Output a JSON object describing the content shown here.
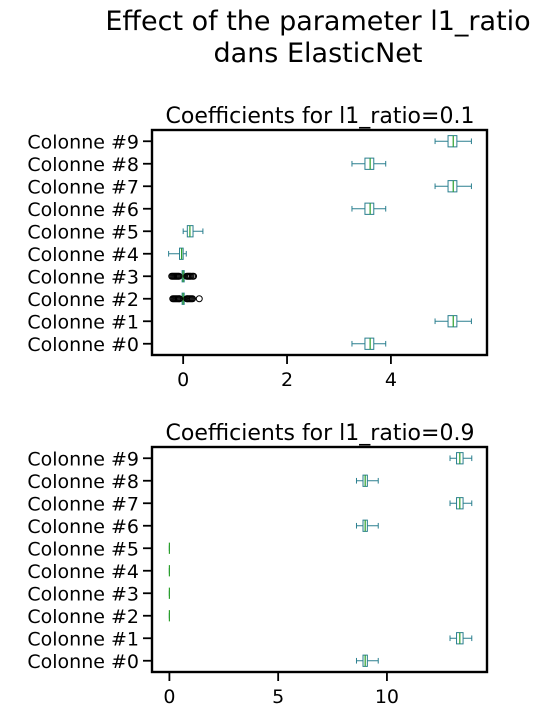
{
  "figure": {
    "suptitle_line1": "Effect of the parameter l1_ratio",
    "suptitle_line2": "dans ElasticNet"
  },
  "colors": {
    "box": "#2a7f8f",
    "median": "#2ca02c",
    "outlier": "#000000",
    "axes": "#000000"
  },
  "chart_data": [
    {
      "type": "boxplot",
      "orientation": "horizontal",
      "title": "Coefficients for l1_ratio=0.1",
      "categories": [
        "Colonne #0",
        "Colonne #1",
        "Colonne #2",
        "Colonne #3",
        "Colonne #4",
        "Colonne #5",
        "Colonne #6",
        "Colonne #7",
        "Colonne #8",
        "Colonne #9"
      ],
      "xlim": [
        -0.6,
        5.85
      ],
      "xticks": [
        0,
        2,
        4
      ],
      "xtick_labels": [
        "0",
        "2",
        "4"
      ],
      "grid": false,
      "boxes": [
        {
          "whislo": 3.25,
          "q1": 3.5,
          "med": 3.6,
          "q3": 3.67,
          "whishi": 3.9,
          "fliers": []
        },
        {
          "whislo": 4.85,
          "q1": 5.1,
          "med": 5.2,
          "q3": 5.27,
          "whishi": 5.55,
          "fliers": []
        },
        {
          "whislo": -0.05,
          "q1": -0.02,
          "med": 0.0,
          "q3": 0.02,
          "whishi": 0.05,
          "fliers": [
            -0.2,
            -0.18,
            -0.16,
            -0.14,
            -0.12,
            -0.1,
            -0.08,
            -0.07,
            0.07,
            0.08,
            0.1,
            0.12,
            0.14,
            0.16,
            0.18,
            0.31
          ]
        },
        {
          "whislo": -0.05,
          "q1": -0.02,
          "med": 0.0,
          "q3": 0.02,
          "whishi": 0.05,
          "fliers": [
            -0.22,
            -0.2,
            -0.18,
            -0.16,
            -0.14,
            -0.12,
            -0.1,
            -0.08,
            0.07,
            0.09,
            0.11,
            0.13,
            0.15,
            0.18,
            0.2
          ]
        },
        {
          "whislo": -0.28,
          "q1": -0.07,
          "med": -0.03,
          "q3": 0.0,
          "whishi": 0.06,
          "fliers": []
        },
        {
          "whislo": 0.0,
          "q1": 0.08,
          "med": 0.13,
          "q3": 0.19,
          "whishi": 0.38,
          "fliers": []
        },
        {
          "whislo": 3.25,
          "q1": 3.5,
          "med": 3.6,
          "q3": 3.67,
          "whishi": 3.9,
          "fliers": []
        },
        {
          "whislo": 4.85,
          "q1": 5.1,
          "med": 5.2,
          "q3": 5.27,
          "whishi": 5.55,
          "fliers": []
        },
        {
          "whislo": 3.25,
          "q1": 3.5,
          "med": 3.6,
          "q3": 3.67,
          "whishi": 3.9,
          "fliers": []
        },
        {
          "whislo": 4.85,
          "q1": 5.1,
          "med": 5.2,
          "q3": 5.27,
          "whishi": 5.55,
          "fliers": []
        }
      ]
    },
    {
      "type": "boxplot",
      "orientation": "horizontal",
      "title": "Coefficients for l1_ratio=0.9",
      "categories": [
        "Colonne #0",
        "Colonne #1",
        "Colonne #2",
        "Colonne #3",
        "Colonne #4",
        "Colonne #5",
        "Colonne #6",
        "Colonne #7",
        "Colonne #8",
        "Colonne #9"
      ],
      "xlim": [
        -0.8,
        14.6
      ],
      "xticks": [
        0,
        5,
        10
      ],
      "xtick_labels": [
        "0",
        "5",
        "10"
      ],
      "grid": false,
      "boxes": [
        {
          "whislo": 8.6,
          "q1": 8.9,
          "med": 9.0,
          "q3": 9.1,
          "whishi": 9.6,
          "fliers": []
        },
        {
          "whislo": 12.9,
          "q1": 13.2,
          "med": 13.35,
          "q3": 13.5,
          "whishi": 13.9,
          "fliers": []
        },
        {
          "whislo": 0.0,
          "q1": 0.0,
          "med": 0.0,
          "q3": 0.0,
          "whishi": 0.0,
          "fliers": []
        },
        {
          "whislo": 0.0,
          "q1": 0.0,
          "med": 0.0,
          "q3": 0.0,
          "whishi": 0.0,
          "fliers": []
        },
        {
          "whislo": 0.0,
          "q1": 0.0,
          "med": 0.0,
          "q3": 0.0,
          "whishi": 0.0,
          "fliers": []
        },
        {
          "whislo": 0.0,
          "q1": 0.0,
          "med": 0.0,
          "q3": 0.0,
          "whishi": 0.0,
          "fliers": []
        },
        {
          "whislo": 8.6,
          "q1": 8.9,
          "med": 9.0,
          "q3": 9.1,
          "whishi": 9.6,
          "fliers": []
        },
        {
          "whislo": 12.9,
          "q1": 13.2,
          "med": 13.35,
          "q3": 13.5,
          "whishi": 13.9,
          "fliers": []
        },
        {
          "whislo": 8.6,
          "q1": 8.9,
          "med": 9.0,
          "q3": 9.1,
          "whishi": 9.6,
          "fliers": []
        },
        {
          "whislo": 12.9,
          "q1": 13.2,
          "med": 13.35,
          "q3": 13.5,
          "whishi": 13.9,
          "fliers": []
        }
      ]
    }
  ]
}
